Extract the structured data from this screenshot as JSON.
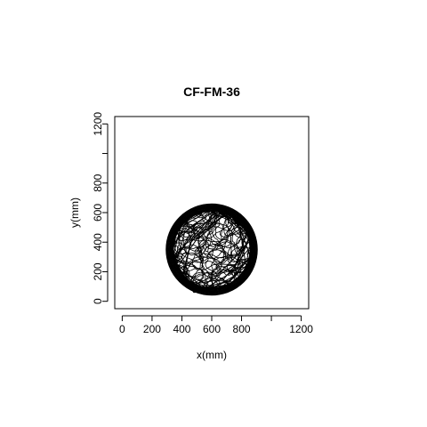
{
  "chart_data": {
    "type": "line",
    "title": "CF-FM-36",
    "xlabel": "x(mm)",
    "ylabel": "y(mm)",
    "xlim": [
      -50,
      1250
    ],
    "ylim": [
      -50,
      1250
    ],
    "x_ticks": [
      0,
      200,
      400,
      600,
      800,
      1000,
      1200
    ],
    "x_tick_labels": [
      "0",
      "200",
      "400",
      "600",
      "800",
      "",
      "1200"
    ],
    "y_ticks": [
      0,
      200,
      400,
      600,
      800,
      1000,
      1200
    ],
    "y_tick_labels": [
      "0",
      "200",
      "400",
      "600",
      "800",
      "",
      "1200"
    ],
    "grid": false,
    "legend": "none",
    "line_color": "#000000",
    "arena": {
      "center_x": 600,
      "center_y": 350,
      "radius": 305
    },
    "series": [
      {
        "x": [
          600,
          420,
          510,
          700,
          840,
          760,
          560,
          380,
          330,
          480,
          650,
          810,
          880,
          720,
          540,
          360,
          420,
          600,
          780,
          860,
          700,
          470,
          340,
          390,
          580,
          760,
          820,
          640,
          450,
          350,
          500,
          690,
          850,
          740,
          530,
          400,
          460,
          620,
          800,
          870,
          680,
          440,
          320,
          430,
          610,
          790,
          830,
          660,
          480,
          370,
          520,
          710,
          860,
          750,
          550,
          410,
          470,
          640,
          810,
          620
        ],
        "y": [
          640,
          560,
          420,
          600,
          470,
          250,
          120,
          210,
          380,
          520,
          630,
          540,
          330,
          140,
          90,
          260,
          470,
          600,
          520,
          300,
          110,
          80,
          300,
          500,
          610,
          560,
          360,
          180,
          100,
          280,
          490,
          620,
          430,
          200,
          70,
          160,
          400,
          580,
          560,
          380,
          150,
          110,
          320,
          540,
          640,
          490,
          240,
          90,
          60,
          230,
          450,
          610,
          450,
          170,
          60,
          190,
          430,
          620,
          500,
          380
        ]
      }
    ]
  }
}
